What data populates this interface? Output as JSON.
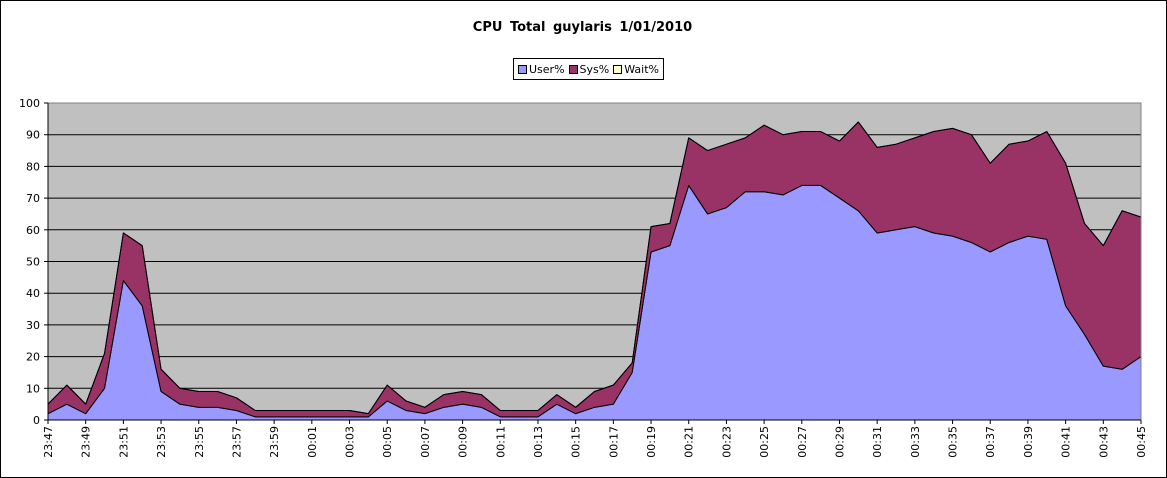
{
  "chart_data": {
    "type": "area",
    "stacked": true,
    "title": "CPU  Total  guylaris   1/01/2010",
    "xlabel": "",
    "ylabel": "",
    "ylim": [
      0,
      100
    ],
    "yticks": [
      0,
      10,
      20,
      30,
      40,
      50,
      60,
      70,
      80,
      90,
      100
    ],
    "grid": true,
    "legend_position": "top-center",
    "plot_background": "#C0C0C0",
    "x_labels": [
      "23:47",
      "23:49",
      "23:51",
      "23:53",
      "23:55",
      "23:57",
      "23:59",
      "00:01",
      "00:03",
      "00:05",
      "00:07",
      "00:09",
      "00:11",
      "00:13",
      "00:15",
      "00:17",
      "00:19",
      "00:21",
      "00:23",
      "00:25",
      "00:27",
      "00:29",
      "00:31",
      "00:33",
      "00:35",
      "00:37",
      "00:39",
      "00:41",
      "00:43",
      "00:45"
    ],
    "series": [
      {
        "name": "User%",
        "color": "#9999FF",
        "values": [
          2,
          5,
          2,
          10,
          44,
          36,
          9,
          5,
          4,
          4,
          3,
          1,
          1,
          1,
          1,
          1,
          1,
          1,
          6,
          3,
          2,
          4,
          5,
          4,
          1,
          1,
          1,
          5,
          2,
          4,
          5,
          15,
          53,
          55,
          74,
          65,
          67,
          72,
          72,
          71,
          74,
          74,
          70,
          66,
          59,
          60,
          61,
          59,
          58,
          56,
          53,
          56,
          58,
          57,
          36,
          27,
          17,
          16,
          20
        ]
      },
      {
        "name": "Sys%",
        "color": "#993366",
        "values": [
          3,
          6,
          3,
          11,
          15,
          19,
          7,
          5,
          5,
          5,
          4,
          2,
          2,
          2,
          2,
          2,
          2,
          1,
          5,
          3,
          2,
          4,
          4,
          4,
          2,
          2,
          2,
          3,
          2,
          5,
          6,
          3,
          8,
          7,
          15,
          20,
          20,
          17,
          21,
          19,
          17,
          17,
          18,
          28,
          27,
          27,
          28,
          32,
          34,
          34,
          28,
          31,
          30,
          34,
          45,
          35,
          38,
          50,
          44
        ]
      },
      {
        "name": "Wait%",
        "color": "#FFFFCC",
        "values": [
          0,
          0,
          0,
          0,
          0,
          0,
          0,
          0,
          0,
          0,
          0,
          0,
          0,
          0,
          0,
          0,
          0,
          0,
          0,
          0,
          0,
          0,
          0,
          0,
          0,
          0,
          0,
          0,
          0,
          0,
          0,
          0,
          0,
          0,
          0,
          0,
          0,
          0,
          0,
          0,
          0,
          0,
          0,
          0,
          0,
          0,
          0,
          0,
          0,
          0,
          0,
          0,
          0,
          0,
          0,
          0,
          0,
          0,
          0
        ]
      }
    ]
  }
}
